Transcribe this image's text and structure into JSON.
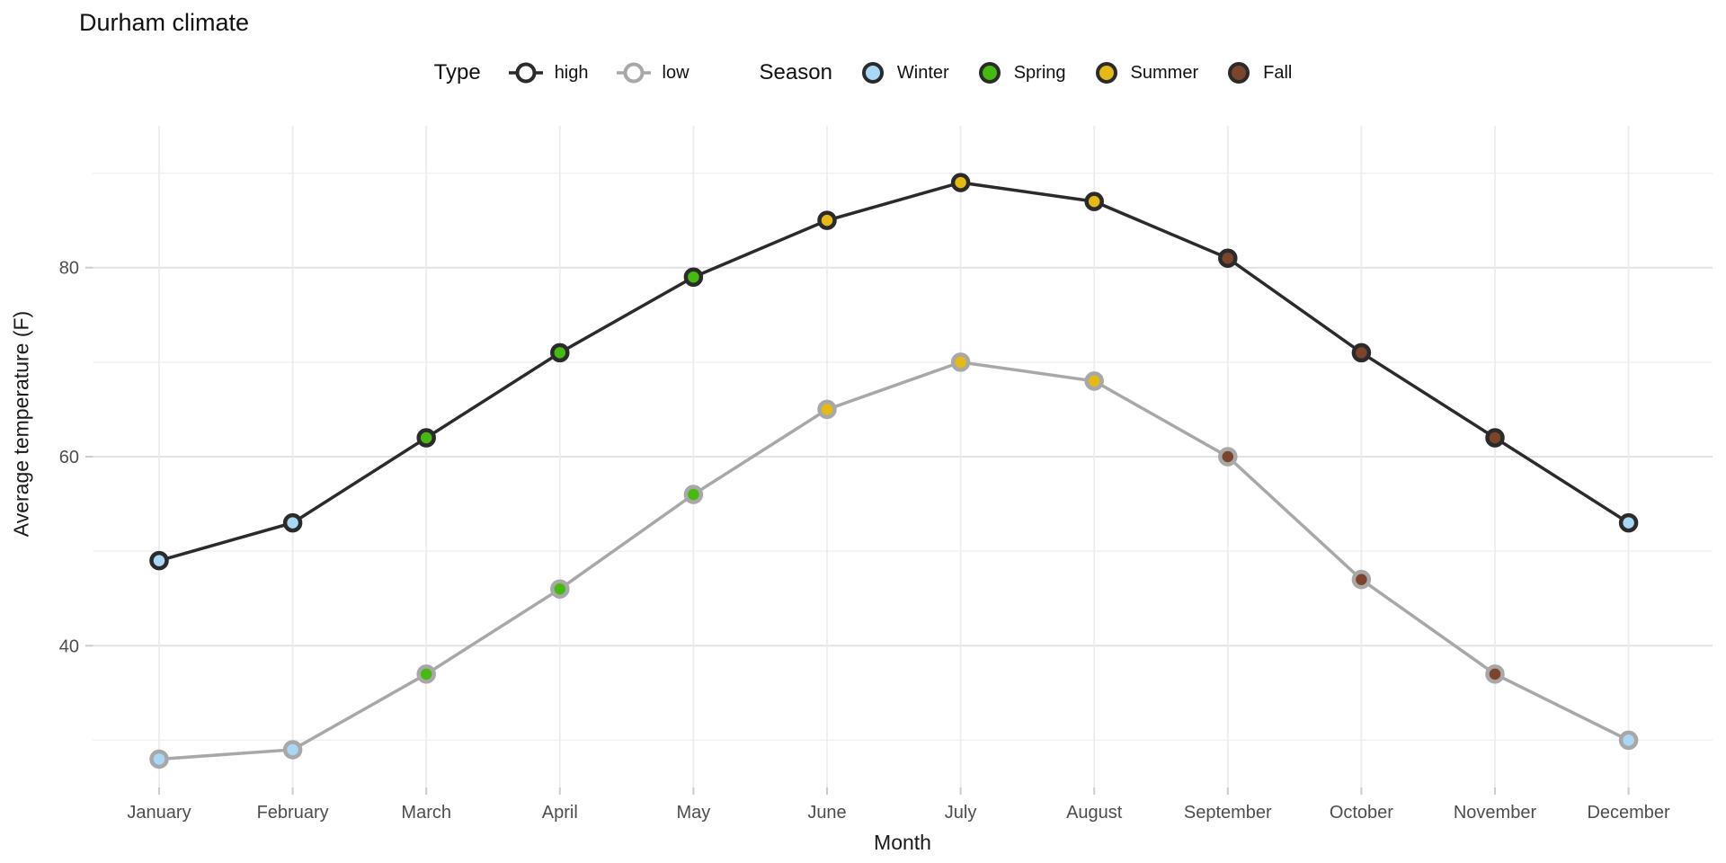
{
  "title": "Durham climate",
  "legend": {
    "type_title": "Type",
    "high_label": "high",
    "low_label": "low",
    "season_title": "Season",
    "winter_label": "Winter",
    "spring_label": "Spring",
    "summer_label": "Summer",
    "fall_label": "Fall"
  },
  "colors": {
    "high": "#2b2b2b",
    "low": "#a8a8a8",
    "winter": "#a8d8f6",
    "spring": "#47ba11",
    "summer": "#e5ba14",
    "fall": "#7c452b",
    "key_fill": "#ffffff",
    "grid_major": "#e2e2e2",
    "grid_minor": "#f0f0f0",
    "grid_vertical": "#ececec",
    "tick": "#cccccc",
    "tick_label": "#4d4d4d"
  },
  "chart_data": {
    "type": "line",
    "title": "Durham climate",
    "xlabel": "Month",
    "ylabel": "Average temperature (F)",
    "x": [
      "January",
      "February",
      "March",
      "April",
      "May",
      "June",
      "July",
      "August",
      "September",
      "October",
      "November",
      "December"
    ],
    "series": [
      {
        "name": "high",
        "values": [
          49,
          53,
          62,
          71,
          79,
          85,
          89,
          87,
          81,
          71,
          62,
          53
        ]
      },
      {
        "name": "low",
        "values": [
          28,
          29,
          37,
          46,
          56,
          65,
          70,
          68,
          60,
          47,
          37,
          30
        ]
      }
    ],
    "point_seasons": [
      "winter",
      "winter",
      "spring",
      "spring",
      "spring",
      "summer",
      "summer",
      "summer",
      "fall",
      "fall",
      "fall",
      "winter"
    ],
    "season_names": {
      "winter": "Winter",
      "spring": "Spring",
      "summer": "Summer",
      "fall": "Fall"
    },
    "yticks_major": [
      40,
      60,
      80
    ],
    "yticks_minor": [
      30,
      50,
      70,
      90
    ],
    "ylim": [
      25,
      95
    ],
    "grid": true,
    "legend_position": "top"
  }
}
